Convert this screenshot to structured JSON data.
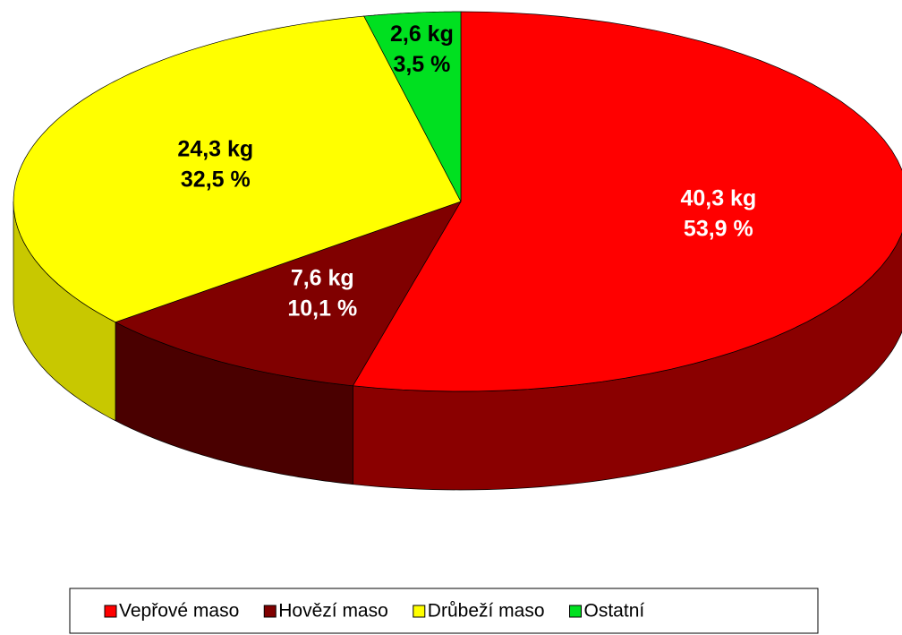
{
  "chart_data": {
    "type": "pie3d",
    "categories": [
      "Vepřové maso",
      "Hovězí maso",
      "Drůbeží maso",
      "Ostatní"
    ],
    "values": [
      40.3,
      7.6,
      24.3,
      2.6
    ],
    "value_labels": [
      "40,3 kg",
      "7,6 kg",
      "24,3 kg",
      "2,6 kg"
    ],
    "percent_values": [
      53.9,
      10.1,
      32.5,
      3.5
    ],
    "percent_labels": [
      "53,9 %",
      "10,1 %",
      "32,5 %",
      "3,5 %"
    ],
    "colors": [
      "#ff0000",
      "#800000",
      "#ffff00",
      "#00e020"
    ],
    "side_colors": [
      "#8a0000",
      "#4a0000",
      "#c8c800",
      "#009010"
    ],
    "label_colors": [
      "#ffffff",
      "#ffffff",
      "#000000",
      "#000000"
    ],
    "legend": "bottom"
  }
}
